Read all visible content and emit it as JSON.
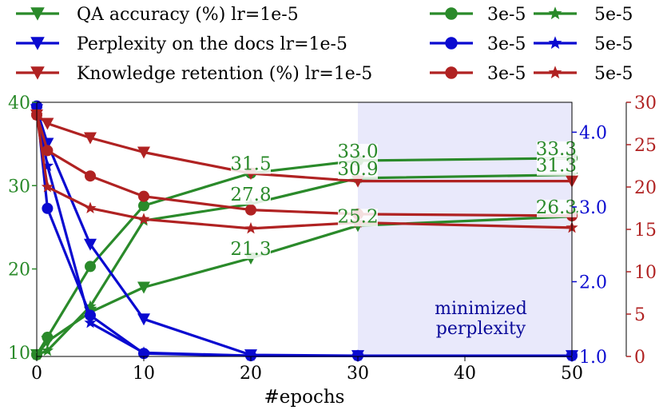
{
  "chart_data": {
    "type": "line",
    "xlabel": "#epochs",
    "x_ticks": [
      0,
      10,
      20,
      30,
      40,
      50
    ],
    "x_tick_labels": [
      "0",
      "10",
      "20",
      "30",
      "40",
      "50"
    ],
    "xlim": [
      0,
      50
    ],
    "axes": {
      "qa": {
        "ylim": [
          9.5,
          40
        ],
        "ticks": [
          10,
          20,
          30,
          40
        ],
        "tick_labels": [
          "10",
          "20",
          "30",
          "40"
        ],
        "color": "#2a8a2a"
      },
      "perplexity": {
        "ylim": [
          1.0,
          4.4
        ],
        "ticks": [
          1.0,
          2.0,
          3.0,
          4.0
        ],
        "tick_labels": [
          "1.0",
          "2.0",
          "3.0",
          "4.0"
        ],
        "color": "#0a0ad0"
      },
      "retention": {
        "ylim": [
          0,
          30
        ],
        "ticks": [
          0,
          5,
          10,
          15,
          20,
          25,
          30
        ],
        "tick_labels": [
          "0",
          "5",
          "10",
          "15",
          "20",
          "25",
          "30"
        ],
        "color": "#b02222"
      }
    },
    "shaded_region": {
      "x_from": 30,
      "x_to": 50,
      "label_line1": "minimized",
      "label_line2": "perplexity",
      "color": "#e9e9fb",
      "text_color": "#0a0a9a"
    },
    "legend": {
      "row_labels": [
        "QA accuracy (%) lr=1e-5",
        "Perplexity on the docs lr=1e-5",
        "Knowledge retention (%) lr=1e-5"
      ],
      "col2_label": "3e-5",
      "col3_label": "5e-5"
    },
    "series": [
      {
        "name": "QA accuracy lr=1e-5",
        "axis": "qa",
        "marker": "triangle",
        "color": "#2a8a2a",
        "x": [
          0,
          1,
          5,
          10,
          20,
          30,
          50
        ],
        "y": [
          9.7,
          11.3,
          14.8,
          17.8,
          21.3,
          25.2,
          26.3
        ]
      },
      {
        "name": "QA accuracy lr=3e-5",
        "axis": "qa",
        "marker": "circle",
        "color": "#2a8a2a",
        "x": [
          0,
          1,
          5,
          10,
          20,
          30,
          50
        ],
        "y": [
          9.7,
          11.8,
          20.3,
          27.6,
          31.5,
          33.0,
          33.3
        ]
      },
      {
        "name": "QA accuracy lr=5e-5",
        "axis": "qa",
        "marker": "star",
        "color": "#2a8a2a",
        "x": [
          0,
          1,
          5,
          10,
          20,
          30,
          50
        ],
        "y": [
          9.7,
          10.2,
          15.5,
          25.8,
          27.8,
          30.9,
          31.3
        ]
      },
      {
        "name": "Perplexity lr=1e-5",
        "axis": "perplexity",
        "marker": "triangle",
        "color": "#0a0ad0",
        "x": [
          0,
          1,
          5,
          10,
          20,
          30,
          50
        ],
        "y": [
          4.3,
          3.85,
          2.5,
          1.5,
          1.02,
          1.01,
          1.01
        ]
      },
      {
        "name": "Perplexity lr=3e-5",
        "axis": "perplexity",
        "marker": "circle",
        "color": "#0a0ad0",
        "x": [
          0,
          1,
          5,
          10,
          20,
          30,
          50
        ],
        "y": [
          4.35,
          2.98,
          1.55,
          1.04,
          1.01,
          1.01,
          1.01
        ]
      },
      {
        "name": "Perplexity lr=5e-5",
        "axis": "perplexity",
        "marker": "star",
        "color": "#0a0ad0",
        "x": [
          0,
          1,
          5,
          10,
          20,
          30,
          50
        ],
        "y": [
          4.3,
          3.55,
          1.45,
          1.05,
          1.01,
          1.01,
          1.01
        ]
      },
      {
        "name": "Retention lr=1e-5",
        "axis": "retention",
        "marker": "triangle",
        "color": "#b02222",
        "x": [
          0,
          1,
          5,
          10,
          20,
          30,
          50
        ],
        "y": [
          28.5,
          27.5,
          25.8,
          24.1,
          21.6,
          20.7,
          20.7
        ]
      },
      {
        "name": "Retention lr=3e-5",
        "axis": "retention",
        "marker": "circle",
        "color": "#b02222",
        "x": [
          0,
          1,
          5,
          10,
          20,
          30,
          50
        ],
        "y": [
          28.5,
          24.3,
          21.3,
          18.9,
          17.3,
          16.8,
          16.6
        ]
      },
      {
        "name": "Retention lr=5e-5",
        "axis": "retention",
        "marker": "star",
        "color": "#b02222",
        "x": [
          0,
          1,
          5,
          10,
          20,
          30,
          50
        ],
        "y": [
          28.5,
          20.0,
          17.5,
          16.2,
          15.1,
          15.8,
          15.2
        ]
      }
    ],
    "annotations": [
      {
        "text": "31.5",
        "x": 20,
        "y": 31.5,
        "axis": "qa"
      },
      {
        "text": "33.0",
        "x": 30,
        "y": 33.0,
        "axis": "qa"
      },
      {
        "text": "33.3",
        "x": 50,
        "y": 33.3,
        "axis": "qa"
      },
      {
        "text": "27.8",
        "x": 20,
        "y": 27.8,
        "axis": "qa"
      },
      {
        "text": "30.9",
        "x": 30,
        "y": 30.9,
        "axis": "qa"
      },
      {
        "text": "31.3",
        "x": 50,
        "y": 31.3,
        "axis": "qa"
      },
      {
        "text": "21.3",
        "x": 20,
        "y": 21.3,
        "axis": "qa"
      },
      {
        "text": "25.2",
        "x": 30,
        "y": 25.2,
        "axis": "qa"
      },
      {
        "text": "26.3",
        "x": 50,
        "y": 26.3,
        "axis": "qa"
      }
    ]
  }
}
